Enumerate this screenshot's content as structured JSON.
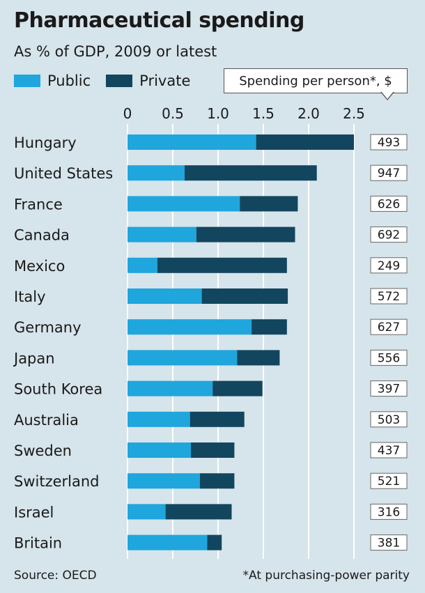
{
  "header": {
    "title": "Pharmaceutical spending",
    "subtitle": "As % of GDP, 2009 or latest"
  },
  "legend": {
    "public_label": "Public",
    "private_label": "Private",
    "public_color": "#1fa6dc",
    "private_color": "#12465e"
  },
  "per_person_box": {
    "label": "Spending per person*, $"
  },
  "footer": {
    "source": "Source: OECD",
    "footnote": "*At purchasing-power parity"
  },
  "chart_data": {
    "type": "bar",
    "orientation": "horizontal",
    "stacked": true,
    "xlim": [
      0,
      2.5
    ],
    "xticks": [
      "0",
      "0.5",
      "1.0",
      "1.5",
      "2.0",
      "2.5"
    ],
    "xtick_values": [
      0,
      0.5,
      1.0,
      1.5,
      2.0,
      2.5
    ],
    "grid": true,
    "categories": [
      "Hungary",
      "United States",
      "France",
      "Canada",
      "Mexico",
      "Italy",
      "Germany",
      "Japan",
      "South Korea",
      "Australia",
      "Sweden",
      "Switzerland",
      "Israel",
      "Britain"
    ],
    "series": [
      {
        "name": "Public",
        "values": [
          1.42,
          0.63,
          1.24,
          0.76,
          0.33,
          0.82,
          1.37,
          1.21,
          0.94,
          0.69,
          0.7,
          0.8,
          0.42,
          0.88
        ]
      },
      {
        "name": "Private",
        "values": [
          1.08,
          1.46,
          0.64,
          1.09,
          1.43,
          0.95,
          0.39,
          0.47,
          0.55,
          0.6,
          0.48,
          0.38,
          0.73,
          0.16
        ]
      }
    ],
    "per_person_usd": [
      "493",
      "947",
      "626",
      "692",
      "249",
      "572",
      "627",
      "556",
      "397",
      "503",
      "437",
      "521",
      "316",
      "381"
    ]
  }
}
